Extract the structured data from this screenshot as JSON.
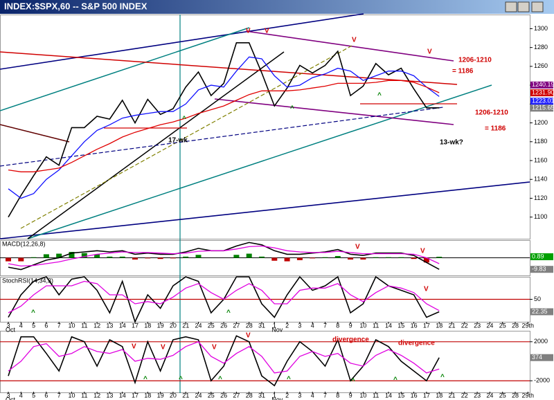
{
  "window": {
    "title": "INDEX:$SPX,60 -- S&P 500 INDEX"
  },
  "chart_data": [
    {
      "type": "line",
      "categories": [
        "3",
        "4",
        "5",
        "6",
        "7",
        "10",
        "11",
        "12",
        "13",
        "14",
        "17",
        "18",
        "19",
        "20",
        "21",
        "24",
        "25",
        "26",
        "27",
        "28",
        "31",
        "1",
        "2",
        "3",
        "4",
        "7",
        "8",
        "9",
        "10",
        "11",
        "14",
        "15",
        "16",
        "17",
        "18",
        "21",
        "22",
        "23",
        "24",
        "25",
        "28",
        "29th"
      ],
      "months": [
        "Oct",
        "Nov"
      ],
      "series": [
        {
          "color": "#000000",
          "values": [
            1100,
            1123,
            1144,
            1164,
            1155,
            1195,
            1195,
            1207,
            1204,
            1224,
            1200,
            1225,
            1209,
            1215,
            1238,
            1254,
            1229,
            1242,
            1285,
            1285,
            1253,
            1218,
            1237,
            1261,
            1253,
            1261,
            1276,
            1229,
            1239,
            1263,
            1251,
            1258,
            1236,
            1216,
            1216,
            null,
            null,
            null,
            null,
            null,
            null,
            null
          ]
        },
        {
          "color": "#1010ff",
          "values": [
            1130,
            1120,
            1125,
            1140,
            1150,
            1165,
            1180,
            1192,
            1198,
            1205,
            1208,
            1210,
            1212,
            1212,
            1220,
            1235,
            1240,
            1238,
            1255,
            1270,
            1268,
            1250,
            1238,
            1240,
            1248,
            1252,
            1258,
            1255,
            1245,
            1250,
            1255,
            1255,
            1250,
            1238,
            1228,
            null,
            null,
            null,
            null,
            null,
            null,
            null
          ]
        },
        {
          "color": "#e00000",
          "values": [
            1150,
            1148,
            1148,
            1150,
            1152,
            1158,
            1165,
            1172,
            1178,
            1185,
            1190,
            1194,
            1198,
            1201,
            1205,
            1210,
            1214,
            1218,
            1224,
            1230,
            1234,
            1234,
            1234,
            1235,
            1237,
            1239,
            1242,
            1242,
            1242,
            1243,
            1245,
            1245,
            1243,
            1238,
            1232,
            null,
            null,
            null,
            null,
            null,
            null,
            null
          ]
        }
      ],
      "ylim": [
        1077,
        1315
      ],
      "yticks": [
        1100,
        1120,
        1140,
        1160,
        1180,
        1200,
        1220,
        1240,
        1260,
        1280,
        1300
      ],
      "last_labels": [
        {
          "value": 1240.19,
          "label": "1240.19",
          "color": "#800080"
        },
        {
          "value": 1231.9,
          "label": "1231.90",
          "color": "#d00000"
        },
        {
          "value": 1223.01,
          "label": "1223.01",
          "color": "#2020ff"
        },
        {
          "value": 1215.65,
          "label": "1215.65",
          "color": "#808080"
        }
      ],
      "annotations": [
        "1206-1210",
        "= 1186",
        "1206-1210",
        "= 1186",
        "17-wk",
        "13-wk?",
        "V",
        "V",
        "V",
        "V",
        "^",
        "^",
        "^"
      ]
    },
    {
      "type": "macd",
      "title": "MACD(12,26,8)",
      "series": [
        {
          "color": "#000000",
          "values": [
            -8,
            -10,
            -6,
            -2,
            0,
            4,
            5,
            6,
            5,
            6,
            3,
            4,
            3,
            3,
            5,
            8,
            6,
            6,
            10,
            13,
            11,
            6,
            3,
            3,
            4,
            5,
            7,
            3,
            2,
            4,
            4,
            4,
            2,
            -4,
            -9.83
          ]
        },
        {
          "color": "#e000e0",
          "values": [
            -5,
            -7,
            -6.5,
            -5,
            -3.5,
            -1,
            1,
            3,
            4,
            5,
            4.5,
            4.5,
            4,
            3.5,
            4,
            5.5,
            6,
            6,
            7.5,
            9.5,
            10,
            8.5,
            6,
            5,
            4.5,
            4.5,
            5.5,
            4.5,
            3.5,
            3.5,
            3.5,
            3.5,
            3,
            0,
            -5
          ]
        }
      ],
      "histogram": {
        "up_color": "#008000",
        "down_color": "#c00000",
        "values": [
          -3,
          -3,
          0.5,
          3,
          3.5,
          5,
          4,
          3,
          1,
          1,
          -1.5,
          -0.5,
          -1,
          -0.5,
          1,
          2.5,
          0,
          0,
          2.5,
          3.5,
          1,
          -2.5,
          -3,
          -2,
          -0.5,
          0.5,
          1.5,
          -1.5,
          -1.5,
          0.5,
          0.5,
          0.5,
          -1,
          -4,
          0.89
        ]
      },
      "ylim": [
        -15,
        15
      ],
      "last_labels": [
        {
          "value": 0.89,
          "label": "0.89",
          "color": "#00a000"
        },
        {
          "value": -9.83,
          "label": "-9.83",
          "color": "#808080"
        }
      ],
      "annotations": [
        "V",
        "V"
      ]
    },
    {
      "type": "stoch",
      "title": "StochRSI(14,34,3)",
      "series": [
        {
          "color": "#000000",
          "values": [
            10,
            60,
            90,
            100,
            60,
            95,
            100,
            70,
            20,
            90,
            0,
            60,
            30,
            80,
            100,
            90,
            20,
            50,
            100,
            100,
            40,
            10,
            60,
            100,
            70,
            80,
            100,
            20,
            40,
            100,
            80,
            70,
            60,
            10,
            22.35
          ]
        },
        {
          "color": "#e000e0",
          "values": [
            20,
            35,
            60,
            80,
            80,
            80,
            90,
            85,
            60,
            60,
            40,
            45,
            40,
            55,
            75,
            85,
            65,
            50,
            70,
            85,
            70,
            40,
            40,
            70,
            75,
            75,
            85,
            60,
            45,
            65,
            80,
            75,
            65,
            40,
            25
          ]
        }
      ],
      "ylim": [
        0,
        100
      ],
      "yticks": [
        50
      ],
      "ref_color": "#c00000",
      "last_labels": [
        {
          "value": 22.35,
          "label": "22.35",
          "color": "#808080"
        }
      ],
      "annotations": [
        "V",
        "^",
        "^"
      ]
    },
    {
      "type": "osc",
      "series": [
        {
          "color": "#000000",
          "values": [
            -1500,
            2500,
            2500,
            800,
            -1000,
            2500,
            2000,
            -500,
            2200,
            1500,
            -2200,
            2000,
            -1000,
            2200,
            2500,
            2200,
            -2000,
            -500,
            2600,
            2000,
            -1500,
            -2500,
            0,
            2000,
            1000,
            -500,
            2200,
            -2000,
            -500,
            2200,
            1500,
            0,
            -1000,
            -2000,
            374
          ]
        },
        {
          "color": "#e000e0",
          "values": [
            -1000,
            0,
            1500,
            1800,
            500,
            800,
            1500,
            1000,
            800,
            1200,
            0,
            300,
            200,
            600,
            1500,
            2000,
            500,
            -200,
            800,
            1500,
            500,
            -1200,
            -1000,
            500,
            1000,
            500,
            800,
            -200,
            -500,
            600,
            1200,
            600,
            -200,
            -1200,
            -800
          ]
        }
      ],
      "ylim": [
        -3190,
        3120
      ],
      "yticks": [
        2000,
        -2000
      ],
      "ref_color": "#c00000",
      "last_labels": [
        {
          "value": 374,
          "label": "374",
          "color": "#808080"
        }
      ],
      "annotations": [
        "divergence",
        "divergence",
        "V",
        "V",
        "V",
        "V",
        "^",
        "^",
        "^",
        "^",
        "^",
        "^",
        "^"
      ]
    }
  ]
}
